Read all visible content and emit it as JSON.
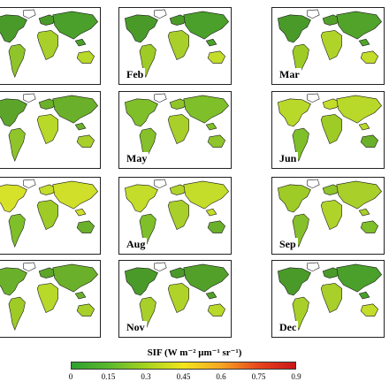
{
  "panels": [
    {
      "label": ""
    },
    {
      "label": "Feb"
    },
    {
      "label": "Mar"
    },
    {
      "label": ""
    },
    {
      "label": "May"
    },
    {
      "label": "Jun"
    },
    {
      "label": ""
    },
    {
      "label": "Aug"
    },
    {
      "label": "Sep"
    },
    {
      "label": ""
    },
    {
      "label": "Nov"
    },
    {
      "label": "Dec"
    }
  ],
  "legend": {
    "title": "SIF (W m⁻² μm⁻¹ sr⁻¹)",
    "ticks": [
      "0",
      "0.15",
      "0.3",
      "0.45",
      "0.6",
      "0.75",
      "0.9"
    ],
    "colors": [
      "#2ea02e",
      "#5cb82e",
      "#a6d31f",
      "#f2e51b",
      "#f5a623",
      "#e8471c",
      "#c9141a"
    ]
  }
}
